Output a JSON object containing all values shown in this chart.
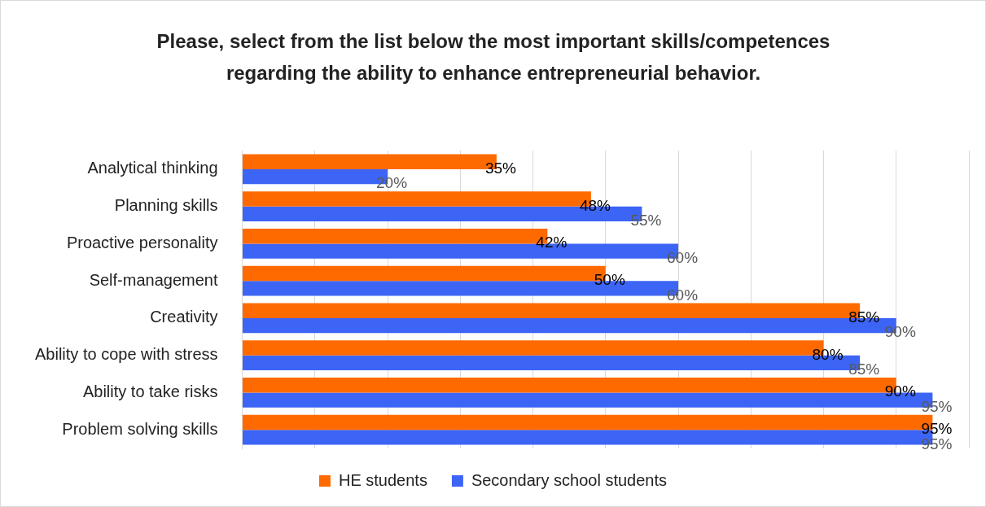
{
  "chart_data": {
    "type": "bar",
    "orientation": "horizontal",
    "title": "Please, select from the list below the most important skills/competences regarding the ability to enhance entrepreneurial behavior.",
    "categories": [
      "Analytical thinking",
      "Planning skills",
      "Proactive personality",
      "Self-management",
      "Creativity",
      "Ability to cope with stress",
      "Ability to take risks",
      "Problem solving skills"
    ],
    "series": [
      {
        "name": "HE students",
        "color": "#ff6a00",
        "values": [
          35,
          48,
          42,
          50,
          85,
          80,
          90,
          95
        ],
        "value_labels": [
          "35%",
          "48%",
          "42%",
          "50%",
          "85%",
          "80%",
          "90%",
          "95%"
        ]
      },
      {
        "name": "Secondary school students",
        "color": "#3c64f5",
        "values": [
          20,
          55,
          60,
          60,
          90,
          85,
          95,
          95
        ],
        "value_labels": [
          "20%",
          "55%",
          "60%",
          "60%",
          "90%",
          "85%",
          "95%",
          "95%"
        ]
      }
    ],
    "xlim": [
      0,
      100
    ],
    "xticks": [
      {
        "value": 0,
        "label": null
      },
      {
        "value": 10,
        "label": null
      },
      {
        "value": 20,
        "label": null
      },
      {
        "value": 30,
        "label": null
      },
      {
        "value": 40,
        "label": null
      },
      {
        "value": 50,
        "label": null
      },
      {
        "value": 60,
        "label": null
      },
      {
        "value": 70,
        "label": null
      },
      {
        "value": 80,
        "label": null
      },
      {
        "value": 90,
        "label": null
      },
      {
        "value": 100,
        "label": null
      }
    ],
    "tick_labels": "y",
    "grid": "x",
    "legend": "bottom"
  }
}
